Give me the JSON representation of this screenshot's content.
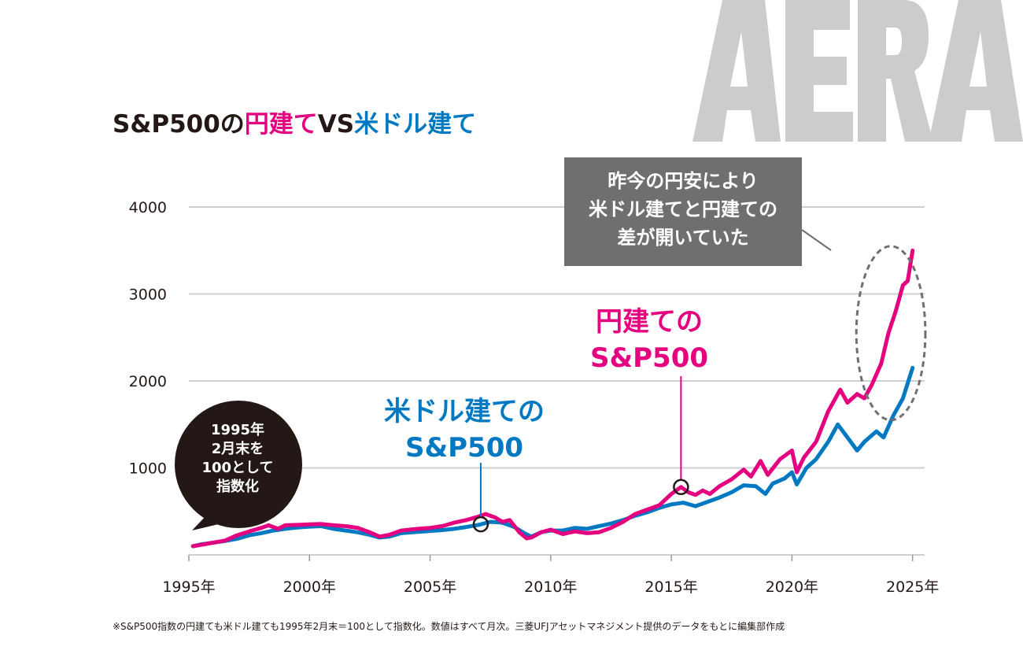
{
  "logo_text": "AERA",
  "title": {
    "part1": "S&P500の",
    "part2": "円建て",
    "part3": "VS",
    "part4": "米ドル建て"
  },
  "callout": {
    "lines": [
      "昨今の円安により",
      "米ドル建てと円建ての",
      "差が開いていた"
    ]
  },
  "bubble": {
    "lines": [
      "1995年",
      "2月末を",
      "100として",
      "指数化"
    ]
  },
  "series_labels": {
    "usd": [
      "米ドル建ての",
      "S&P500"
    ],
    "jpy": [
      "円建ての",
      "S&P500"
    ]
  },
  "note": "※S&P500指数の円建ても米ドル建ても1995年2月末＝100として指数化。数値はすべて月次。三菱UFJアセットマネジメント提供のデータをもとに編集部作成",
  "colors": {
    "jpy": "#e4007f",
    "usd": "#0079c2",
    "callout_bg": "#6f6f6f",
    "bubble_bg": "#231815",
    "grid": "#cfcfcf"
  },
  "chart_data": {
    "type": "line",
    "xlim": [
      1995.0,
      2025.5
    ],
    "ylim": [
      0,
      4000
    ],
    "y_ticks": [
      1000,
      2000,
      3000,
      4000
    ],
    "y_tick_labels": [
      "1000",
      "2000",
      "3000",
      "4000"
    ],
    "x_ticks": [
      1995,
      2000,
      2005,
      2010,
      2015,
      2020,
      2025
    ],
    "x_tick_labels": [
      "1995年",
      "2000年",
      "2005年",
      "2010年",
      "2015年",
      "2020年",
      "2025年"
    ],
    "grid": true,
    "series": [
      {
        "key": "jpy",
        "name": "円建てのS&P500",
        "points": [
          [
            1995.17,
            100
          ],
          [
            1995.5,
            115
          ],
          [
            1996.0,
            140
          ],
          [
            1996.5,
            165
          ],
          [
            1997.0,
            225
          ],
          [
            1997.5,
            270
          ],
          [
            1998.0,
            310
          ],
          [
            1998.3,
            340
          ],
          [
            1998.7,
            300
          ],
          [
            1999.0,
            340
          ],
          [
            1999.5,
            345
          ],
          [
            2000.0,
            350
          ],
          [
            2000.5,
            355
          ],
          [
            2001.0,
            340
          ],
          [
            2001.5,
            330
          ],
          [
            2002.0,
            310
          ],
          [
            2002.5,
            260
          ],
          [
            2002.9,
            210
          ],
          [
            2003.3,
            230
          ],
          [
            2003.8,
            280
          ],
          [
            2004.5,
            300
          ],
          [
            2005.0,
            310
          ],
          [
            2005.5,
            330
          ],
          [
            2006.0,
            370
          ],
          [
            2006.5,
            400
          ],
          [
            2007.0,
            440
          ],
          [
            2007.3,
            470
          ],
          [
            2007.7,
            430
          ],
          [
            2008.0,
            380
          ],
          [
            2008.3,
            400
          ],
          [
            2008.7,
            260
          ],
          [
            2009.0,
            190
          ],
          [
            2009.2,
            200
          ],
          [
            2009.6,
            260
          ],
          [
            2010.0,
            290
          ],
          [
            2010.5,
            240
          ],
          [
            2011.0,
            270
          ],
          [
            2011.5,
            250
          ],
          [
            2012.0,
            260
          ],
          [
            2012.5,
            310
          ],
          [
            2013.0,
            380
          ],
          [
            2013.5,
            470
          ],
          [
            2014.0,
            520
          ],
          [
            2014.5,
            570
          ],
          [
            2015.0,
            700
          ],
          [
            2015.4,
            780
          ],
          [
            2015.7,
            720
          ],
          [
            2016.0,
            690
          ],
          [
            2016.3,
            740
          ],
          [
            2016.6,
            700
          ],
          [
            2017.0,
            790
          ],
          [
            2017.5,
            870
          ],
          [
            2018.0,
            980
          ],
          [
            2018.3,
            900
          ],
          [
            2018.7,
            1080
          ],
          [
            2019.0,
            920
          ],
          [
            2019.5,
            1100
          ],
          [
            2020.0,
            1200
          ],
          [
            2020.2,
            950
          ],
          [
            2020.5,
            1120
          ],
          [
            2021.0,
            1300
          ],
          [
            2021.5,
            1650
          ],
          [
            2022.0,
            1900
          ],
          [
            2022.3,
            1750
          ],
          [
            2022.7,
            1850
          ],
          [
            2023.0,
            1800
          ],
          [
            2023.3,
            1950
          ],
          [
            2023.7,
            2200
          ],
          [
            2024.0,
            2550
          ],
          [
            2024.3,
            2800
          ],
          [
            2024.6,
            3100
          ],
          [
            2024.8,
            3150
          ],
          [
            2025.0,
            3500
          ]
        ]
      },
      {
        "key": "usd",
        "name": "米ドル建てのS&P500",
        "points": [
          [
            1995.17,
            100
          ],
          [
            1995.5,
            120
          ],
          [
            1996.0,
            140
          ],
          [
            1996.5,
            160
          ],
          [
            1997.0,
            185
          ],
          [
            1997.5,
            225
          ],
          [
            1998.0,
            250
          ],
          [
            1998.5,
            280
          ],
          [
            1999.0,
            300
          ],
          [
            1999.5,
            315
          ],
          [
            2000.0,
            325
          ],
          [
            2000.5,
            330
          ],
          [
            2001.0,
            300
          ],
          [
            2001.5,
            280
          ],
          [
            2002.0,
            260
          ],
          [
            2002.5,
            230
          ],
          [
            2002.9,
            200
          ],
          [
            2003.3,
            210
          ],
          [
            2003.8,
            250
          ],
          [
            2004.5,
            265
          ],
          [
            2005.0,
            275
          ],
          [
            2005.5,
            285
          ],
          [
            2006.0,
            300
          ],
          [
            2006.5,
            320
          ],
          [
            2007.0,
            345
          ],
          [
            2007.5,
            380
          ],
          [
            2008.0,
            370
          ],
          [
            2008.5,
            320
          ],
          [
            2008.9,
            250
          ],
          [
            2009.2,
            210
          ],
          [
            2009.6,
            260
          ],
          [
            2010.0,
            280
          ],
          [
            2010.5,
            280
          ],
          [
            2011.0,
            310
          ],
          [
            2011.5,
            300
          ],
          [
            2012.0,
            330
          ],
          [
            2012.5,
            360
          ],
          [
            2013.0,
            400
          ],
          [
            2013.5,
            450
          ],
          [
            2014.0,
            490
          ],
          [
            2014.5,
            540
          ],
          [
            2015.0,
            580
          ],
          [
            2015.5,
            600
          ],
          [
            2016.0,
            560
          ],
          [
            2016.5,
            610
          ],
          [
            2017.0,
            660
          ],
          [
            2017.5,
            720
          ],
          [
            2018.0,
            800
          ],
          [
            2018.5,
            790
          ],
          [
            2018.9,
            700
          ],
          [
            2019.2,
            820
          ],
          [
            2019.7,
            880
          ],
          [
            2020.0,
            950
          ],
          [
            2020.2,
            810
          ],
          [
            2020.6,
            1000
          ],
          [
            2021.0,
            1100
          ],
          [
            2021.5,
            1300
          ],
          [
            2021.9,
            1500
          ],
          [
            2022.3,
            1350
          ],
          [
            2022.7,
            1200
          ],
          [
            2023.0,
            1300
          ],
          [
            2023.5,
            1420
          ],
          [
            2023.8,
            1350
          ],
          [
            2024.2,
            1600
          ],
          [
            2024.6,
            1800
          ],
          [
            2025.0,
            2150
          ]
        ]
      }
    ],
    "markers": [
      {
        "series": "usd",
        "x": 2007.1
      },
      {
        "series": "jpy",
        "x": 2015.4
      }
    ],
    "highlight_ellipse": {
      "x_center": 2024.1,
      "y_center": 2550,
      "x_radius": 2.6,
      "y_radius": 1000
    }
  }
}
